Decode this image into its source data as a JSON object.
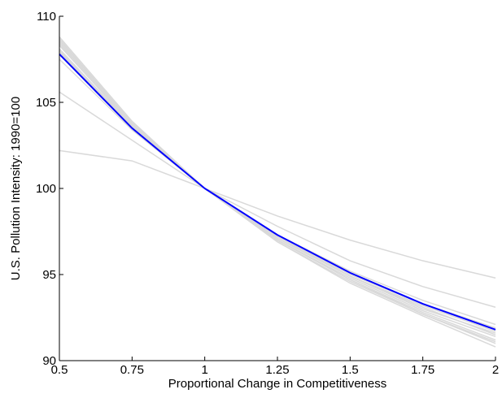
{
  "chart_data": {
    "type": "line",
    "title": "",
    "xlabel": "Proportional Change in Competitiveness",
    "ylabel": "U.S. Pollution Intensity: 1990=100",
    "xlim": [
      0.5,
      2
    ],
    "ylim": [
      90,
      110
    ],
    "x_ticks": [
      "0.5",
      "0.75",
      "1",
      "1.25",
      "1.5",
      "1.75",
      "2"
    ],
    "y_ticks": [
      "90",
      "95",
      "100",
      "105",
      "110"
    ],
    "grid": false,
    "legend": "none",
    "x": [
      0.5,
      0.75,
      1,
      1.25,
      1.5,
      1.75,
      2
    ],
    "colors": {
      "main": "#0000ff",
      "background": "#d9d9d9"
    },
    "main_series": {
      "values": [
        107.8,
        103.5,
        100.0,
        97.3,
        95.1,
        93.3,
        91.8
      ]
    },
    "background_series": [
      {
        "values": [
          102.2,
          101.6,
          100.0,
          98.4,
          97.0,
          95.8,
          94.8
        ]
      },
      {
        "values": [
          105.6,
          102.8,
          100.0,
          97.8,
          95.8,
          94.3,
          93.1
        ]
      },
      {
        "values": [
          107.5,
          103.4,
          100.0,
          97.3,
          95.2,
          93.5,
          92.1
        ]
      },
      {
        "values": [
          107.9,
          103.6,
          100.0,
          97.2,
          95.0,
          93.3,
          91.9
        ]
      },
      {
        "values": [
          108.1,
          103.6,
          100.0,
          97.1,
          94.9,
          93.2,
          91.7
        ]
      },
      {
        "values": [
          108.3,
          103.7,
          100.0,
          97.1,
          94.9,
          93.1,
          91.5
        ]
      },
      {
        "values": [
          108.5,
          103.7,
          100.0,
          97.0,
          94.8,
          92.9,
          91.4
        ]
      },
      {
        "values": [
          108.6,
          103.8,
          100.0,
          97.0,
          94.7,
          92.8,
          91.2
        ]
      },
      {
        "values": [
          108.7,
          103.8,
          100.0,
          96.9,
          94.6,
          92.7,
          91.0
        ]
      },
      {
        "values": [
          108.8,
          103.9,
          100.0,
          96.9,
          94.5,
          92.6,
          90.8
        ]
      },
      {
        "values": [
          108.0,
          103.5,
          100.0,
          97.2,
          94.9,
          93.0,
          91.6
        ]
      },
      {
        "values": [
          108.4,
          103.6,
          100.0,
          97.0,
          94.7,
          92.7,
          91.1
        ]
      }
    ]
  }
}
